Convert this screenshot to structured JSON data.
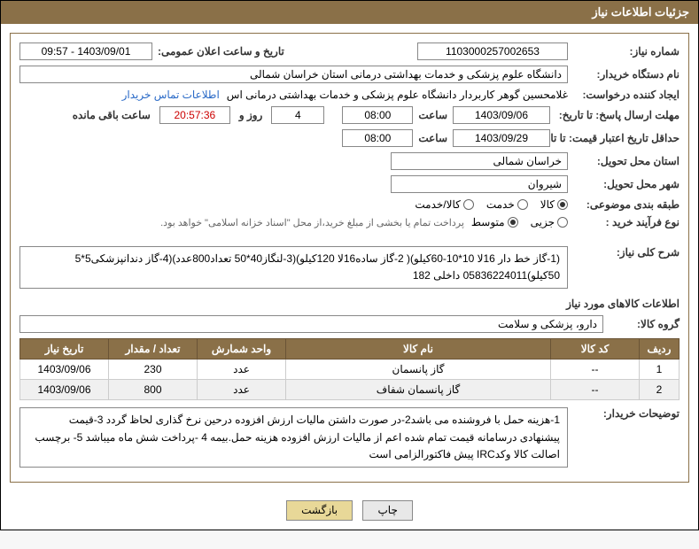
{
  "header": {
    "title": "جزئیات اطلاعات نیاز"
  },
  "fields": {
    "need_number_label": "شماره نیاز:",
    "need_number": "1103000257002653",
    "announce_date_label": "تاریخ و ساعت اعلان عمومی:",
    "announce_date": "1403/09/01 - 09:57",
    "buyer_org_label": "نام دستگاه خریدار:",
    "buyer_org": "دانشگاه علوم پزشکی و خدمات بهداشتی درمانی استان خراسان شمالی",
    "requester_label": "ایجاد کننده درخواست:",
    "requester": "غلامحسین گوهر کاربردار  دانشگاه علوم پزشکی و خدمات بهداشتی درمانی اس",
    "contact_link": "اطلاعات تماس خریدار",
    "reply_deadline_label": "مهلت ارسال پاسخ: تا تاریخ:",
    "reply_deadline_date": "1403/09/06",
    "time_label": "ساعت",
    "reply_deadline_time": "08:00",
    "days_value": "4",
    "days_and": "روز و",
    "countdown": "20:57:36",
    "remaining_label": "ساعت باقی مانده",
    "price_validity_label": "حداقل تاریخ اعتبار قیمت: تا تاریخ:",
    "price_validity_date": "1403/09/29",
    "price_validity_time": "08:00",
    "delivery_province_label": "استان محل تحویل:",
    "delivery_province": "خراسان شمالی",
    "delivery_city_label": "شهر محل تحویل:",
    "delivery_city": "شیروان",
    "category_label": "طبقه بندی موضوعی:",
    "cat_goods": "کالا",
    "cat_service": "خدمت",
    "cat_goods_service": "کالا/خدمت",
    "purchase_type_label": "نوع فرآیند خرید :",
    "pt_minor": "جزیی",
    "pt_medium": "متوسط",
    "purchase_note": "پرداخت تمام یا بخشی از مبلغ خرید،از محل \"اسناد خزانه اسلامی\" خواهد بود.",
    "general_desc_label": "شرح کلی نیاز:",
    "general_desc": "(1-گاز خط دار 16لا 10*10-60کیلو)( 2-گاز ساده16لا 120کیلو)(3-لنگاز40*50 تعداد800عدد)(4-گاز دندانپزشکی5*5 50کیلو)05836224011 داخلی 182",
    "items_section_title": "اطلاعات کالاهای مورد نیاز",
    "goods_group_label": "گروه کالا:",
    "goods_group": "دارو، پزشکی و سلامت",
    "buyer_notes_label": "توضیحات خریدار:",
    "buyer_notes": "1-هزینه حمل با فروشنده می باشد2-در صورت داشتن مالیات ارزش افزوده درحین نرخ گذاری لحاظ گردد 3-قیمت پیشنهادی درسامانه  قیمت تمام شده اعم از مالیات ارزش افزوده هزینه حمل.بیمه  4 -پرداخت شش ماه میباشد 5- برچسب اصالت کالا وکدIRC پیش فاکتورالزامی است"
  },
  "table": {
    "headers": {
      "row": "ردیف",
      "code": "کد کالا",
      "name": "نام کالا",
      "unit": "واحد شمارش",
      "qty": "تعداد / مقدار",
      "date": "تاریخ نیاز"
    },
    "rows": [
      {
        "row": "1",
        "code": "--",
        "name": "گاز پانسمان",
        "unit": "عدد",
        "qty": "230",
        "date": "1403/09/06"
      },
      {
        "row": "2",
        "code": "--",
        "name": "گاز پانسمان شفاف",
        "unit": "عدد",
        "qty": "800",
        "date": "1403/09/06"
      }
    ]
  },
  "buttons": {
    "print": "چاپ",
    "back": "بازگشت"
  },
  "colors": {
    "header_bg": "#8a7048",
    "border": "#8a7048",
    "link": "#2a6ac7",
    "btn_back_bg": "#e8d898"
  }
}
